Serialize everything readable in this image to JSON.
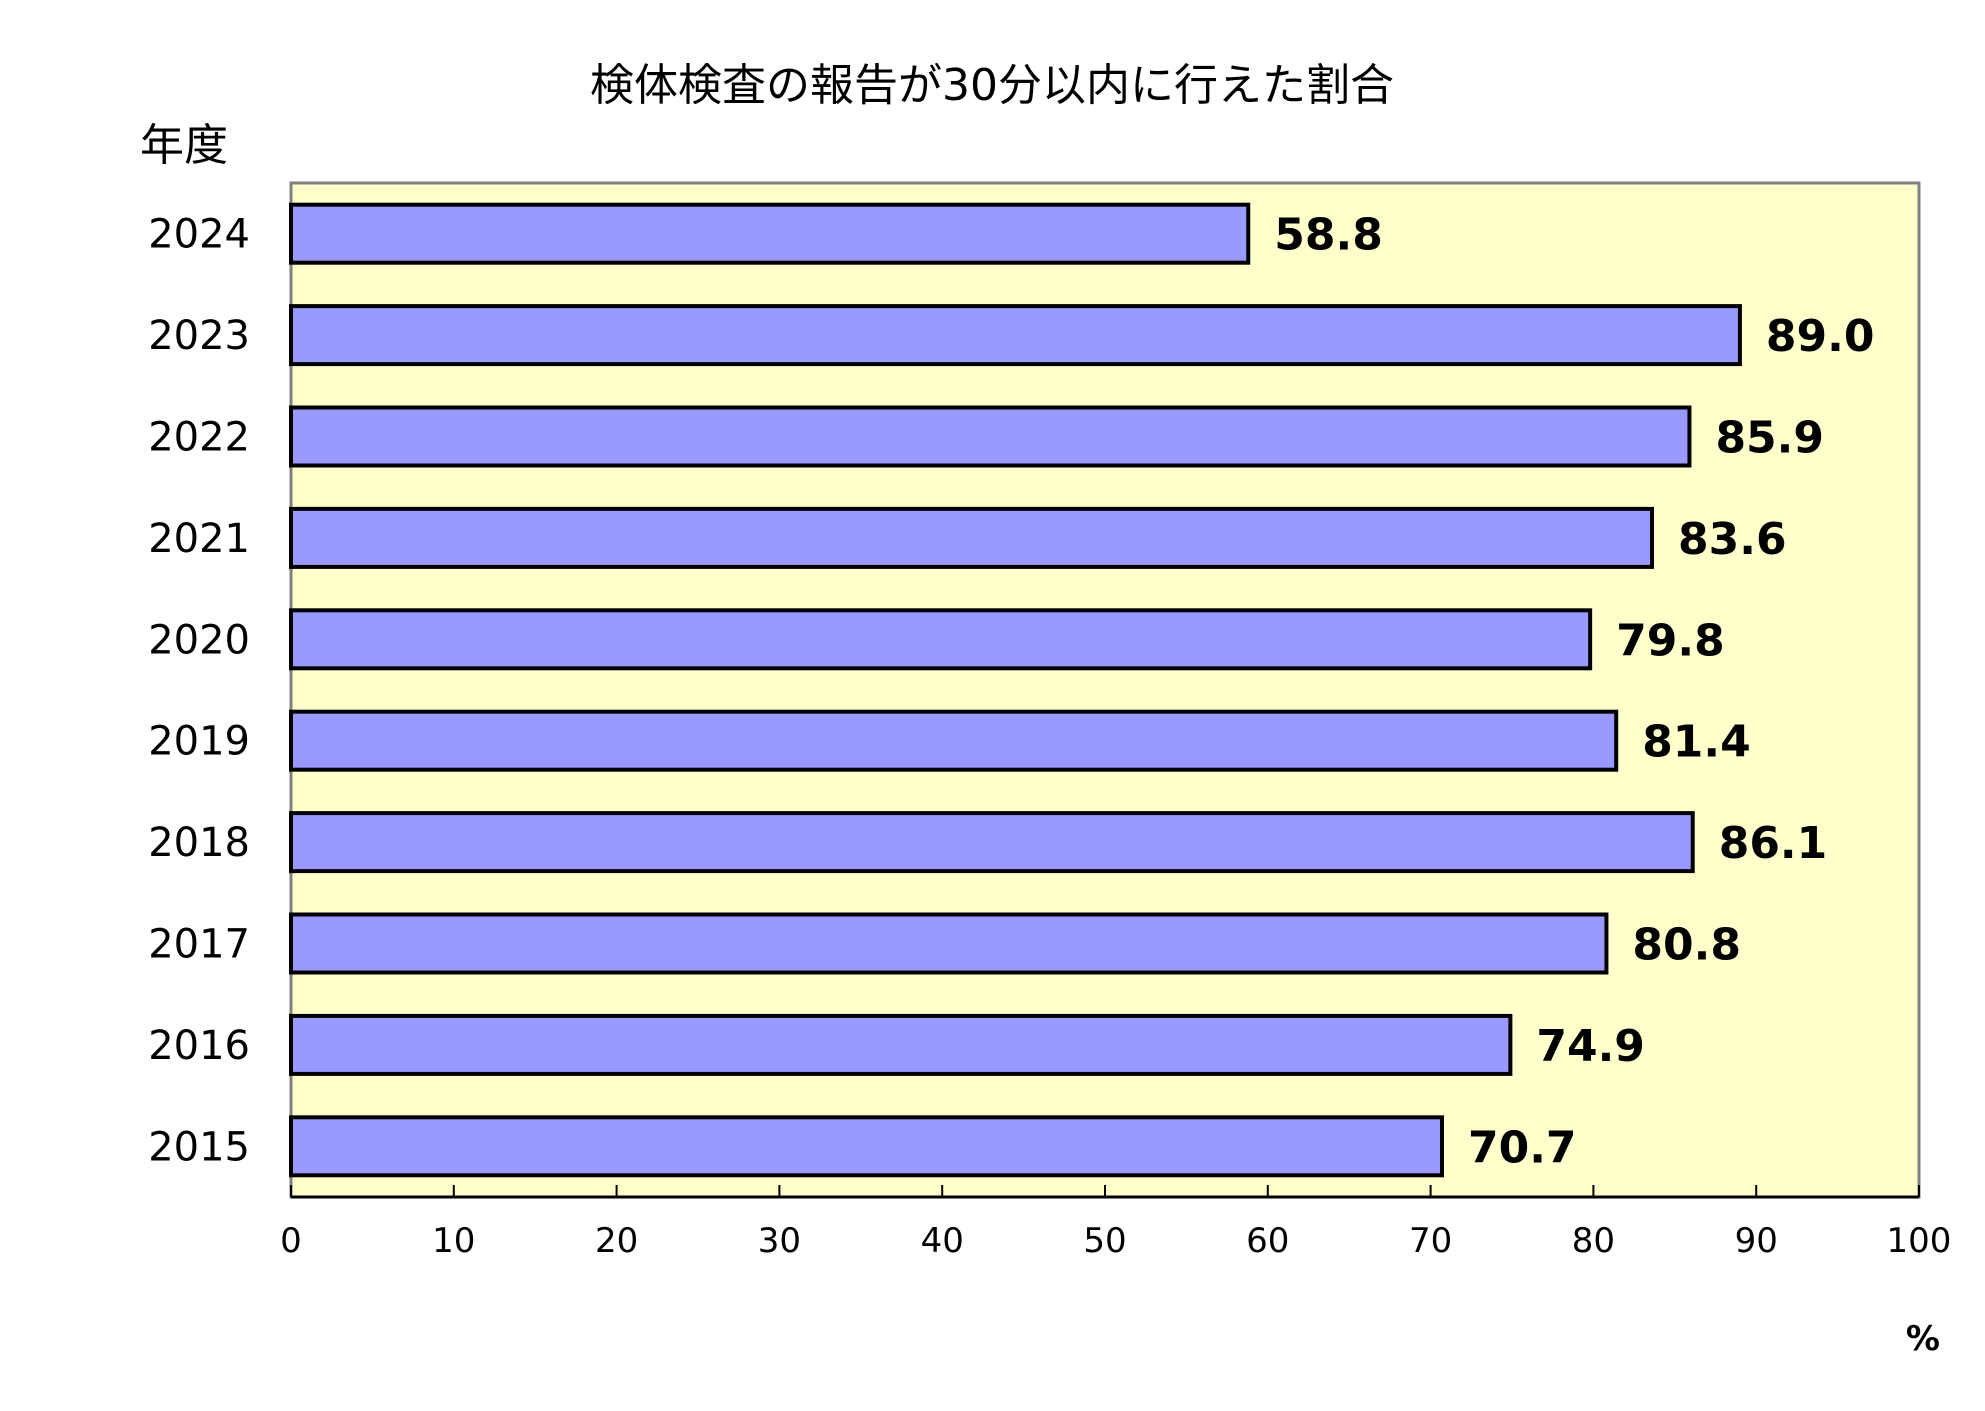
{
  "chart_data": {
    "type": "bar",
    "orientation": "horizontal",
    "title": "検体検査の報告が30分以内に行えた割合",
    "category_axis_title": "年度",
    "value_axis_unit": "%",
    "categories": [
      "2024",
      "2023",
      "2022",
      "2021",
      "2020",
      "2019",
      "2018",
      "2017",
      "2016",
      "2015"
    ],
    "values": [
      58.8,
      89.0,
      85.9,
      83.6,
      79.8,
      81.4,
      86.1,
      80.8,
      74.9,
      70.7
    ],
    "value_labels": [
      "58.8",
      "89.0",
      "85.9",
      "83.6",
      "79.8",
      "81.4",
      "86.1",
      "80.8",
      "74.9",
      "70.7"
    ],
    "xlim": [
      0,
      100
    ],
    "ticks": [
      0,
      10,
      20,
      30,
      40,
      50,
      60,
      70,
      80,
      90,
      100
    ],
    "tick_labels": [
      "0",
      "10",
      "20",
      "30",
      "40",
      "50",
      "60",
      "70",
      "80",
      "90",
      "100"
    ],
    "grid": false,
    "legend": "none",
    "colors": {
      "bar_fill": "#9999ff",
      "bar_stroke": "#000000",
      "plot_background": "#ffffcc",
      "plot_border": "#808080",
      "axis": "#000000"
    }
  }
}
